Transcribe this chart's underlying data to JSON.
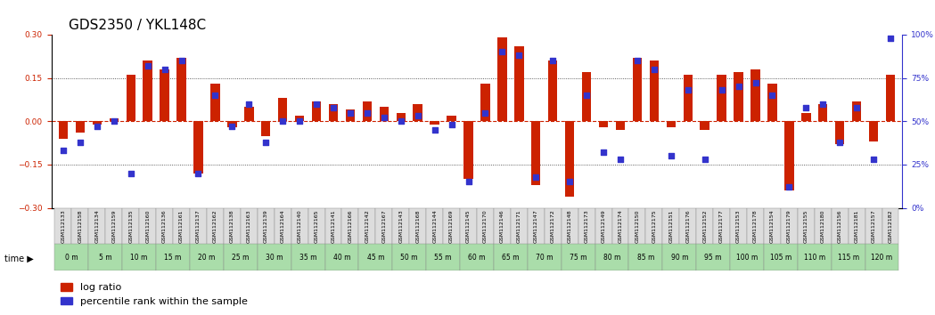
{
  "title": "GDS2350 / YKL148C",
  "categories": [
    "GSM112133",
    "GSM112158",
    "GSM112134",
    "GSM112159",
    "GSM112135",
    "GSM112160",
    "GSM112136",
    "GSM112161",
    "GSM112137",
    "GSM112162",
    "GSM112138",
    "GSM112163",
    "GSM112139",
    "GSM112164",
    "GSM112140",
    "GSM112165",
    "GSM112141",
    "GSM112166",
    "GSM112142",
    "GSM112167",
    "GSM112143",
    "GSM112168",
    "GSM112144",
    "GSM112169",
    "GSM112145",
    "GSM112170",
    "GSM112146",
    "GSM112171",
    "GSM112147",
    "GSM112172",
    "GSM112148",
    "GSM112173",
    "GSM112149",
    "GSM112174",
    "GSM112150",
    "GSM112175",
    "GSM112151",
    "GSM112176",
    "GSM112152",
    "GSM112177",
    "GSM112153",
    "GSM112178",
    "GSM112154",
    "GSM112179",
    "GSM112155",
    "GSM112180",
    "GSM112156",
    "GSM112181",
    "GSM112157",
    "GSM112182"
  ],
  "log_ratio": [
    -0.06,
    -0.04,
    -0.01,
    0.01,
    0.16,
    0.21,
    0.18,
    0.22,
    -0.18,
    0.13,
    -0.02,
    0.05,
    -0.05,
    0.08,
    0.02,
    0.07,
    0.06,
    0.04,
    0.07,
    0.05,
    0.03,
    0.06,
    -0.01,
    0.02,
    -0.2,
    0.13,
    0.29,
    0.26,
    -0.22,
    0.21,
    -0.26,
    0.17,
    -0.02,
    -0.03,
    0.22,
    0.21,
    -0.02,
    0.16,
    -0.03,
    0.16,
    0.17,
    0.18,
    0.13,
    -0.24,
    0.03,
    0.06,
    -0.08,
    0.07,
    -0.07,
    0.16
  ],
  "percentile": [
    33,
    38,
    47,
    50,
    20,
    82,
    80,
    85,
    20,
    65,
    47,
    60,
    38,
    50,
    50,
    60,
    58,
    55,
    55,
    52,
    50,
    53,
    45,
    48,
    15,
    55,
    90,
    88,
    18,
    85,
    15,
    65,
    32,
    28,
    85,
    80,
    30,
    68,
    28,
    68,
    70,
    72,
    65,
    12,
    58,
    60,
    38,
    58,
    28,
    98
  ],
  "time_labels": [
    "0 m",
    "5 m",
    "10 m",
    "15 m",
    "20 m",
    "25 m",
    "30 m",
    "35 m",
    "40 m",
    "45 m",
    "50 m",
    "55 m",
    "60 m",
    "65 m",
    "70 m",
    "75 m",
    "80 m",
    "85 m",
    "90 m",
    "95 m",
    "100 m",
    "105 m",
    "110 m",
    "115 m",
    "120 m"
  ],
  "bar_color": "#cc2200",
  "dot_color": "#3333cc",
  "zero_line_color": "#cc2200",
  "dotted_line_color": "#333333",
  "background_color": "#ffffff",
  "ylim_left": [
    -0.3,
    0.3
  ],
  "ylim_right": [
    0,
    100
  ],
  "yticks_left": [
    -0.3,
    -0.15,
    0.0,
    0.15,
    0.3
  ],
  "yticks_right": [
    0,
    25,
    50,
    75,
    100
  ],
  "title_fontsize": 11,
  "tick_fontsize": 6.5,
  "legend_fontsize": 8
}
